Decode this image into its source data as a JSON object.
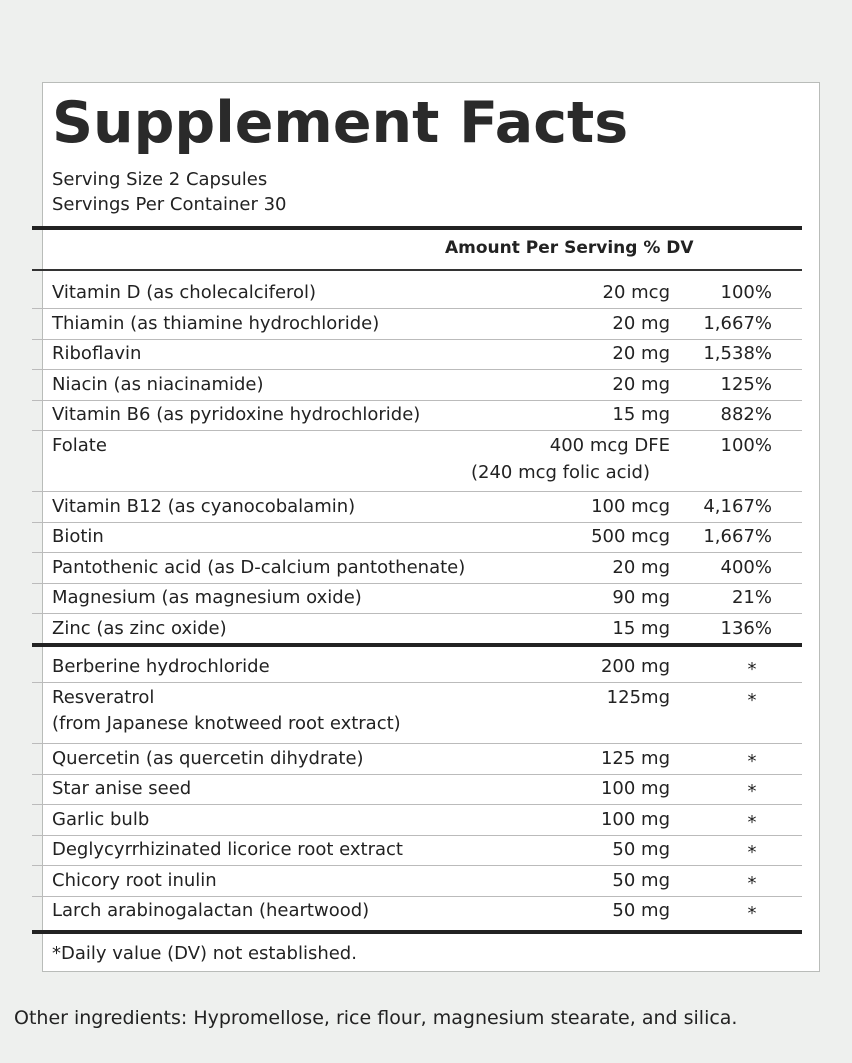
{
  "header": {
    "title": "Supplement Facts",
    "serving_size": "Serving Size 2 Capsules",
    "servings_per_container": "Servings Per Container 30"
  },
  "table": {
    "column_header": "Amount Per Serving % DV",
    "vitamins": [
      {
        "name": "Vitamin D (as cholecalciferol)",
        "amount": "20 mcg",
        "dv": "100%"
      },
      {
        "name": "Thiamin (as thiamine hydrochloride)",
        "amount": "20 mg",
        "dv": "1,667%"
      },
      {
        "name": "Riboflavin",
        "amount": "20 mg",
        "dv": "1,538%"
      },
      {
        "name": "Niacin (as niacinamide)",
        "amount": "20 mg",
        "dv": "125%"
      },
      {
        "name": "Vitamin B6 (as pyridoxine hydrochloride)",
        "amount": "15 mg",
        "dv": "882%"
      },
      {
        "name": "Folate",
        "amount": "400 mcg DFE",
        "amount_note": "(240 mcg folic acid)",
        "dv": "100%"
      },
      {
        "name": "Vitamin B12 (as cyanocobalamin)",
        "amount": "100 mcg",
        "dv": "4,167%"
      },
      {
        "name": "Biotin",
        "amount": "500 mcg",
        "dv": "1,667%"
      },
      {
        "name": "Pantothenic acid (as D-calcium pantothenate)",
        "amount": "20 mg",
        "dv": "400%"
      },
      {
        "name": "Magnesium (as magnesium oxide)",
        "amount": "90 mg",
        "dv": "21%"
      },
      {
        "name": "Zinc (as zinc oxide)",
        "amount": "15 mg",
        "dv": "136%"
      }
    ],
    "others": [
      {
        "name": "Berberine hydrochloride",
        "amount": "200 mg",
        "dv": "*"
      },
      {
        "name": "Resveratrol",
        "name_note": "(from Japanese knotweed root extract)",
        "amount": "125mg",
        "dv": "*"
      },
      {
        "name": "Quercetin (as quercetin dihydrate)",
        "amount": "125 mg",
        "dv": "*"
      },
      {
        "name": "Star anise seed",
        "amount": "100 mg",
        "dv": "*"
      },
      {
        "name": "Garlic bulb",
        "amount": "100 mg",
        "dv": "*"
      },
      {
        "name": "Deglycyrrhizinated licorice root extract",
        "amount": "50 mg",
        "dv": "*"
      },
      {
        "name": "Chicory root inulin",
        "amount": "50 mg",
        "dv": "*"
      },
      {
        "name": "Larch arabinogalactan (heartwood)",
        "amount": "50 mg",
        "dv": "*"
      }
    ]
  },
  "footnote": "*Daily value (DV) not established.",
  "other_ingredients": "Other ingredients: Hypromellose, rice flour, magnesium stearate, and silica."
}
